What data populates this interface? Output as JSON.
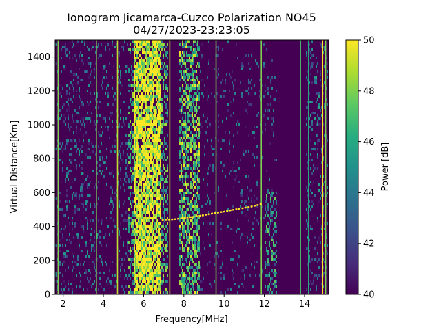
{
  "chart_data": {
    "type": "heatmap",
    "title": "Ionogram Jicamarca-Cuzco Polarization NO45",
    "subtitle": "04/27/2023-23:23:05",
    "xlabel": "Frequency[MHz]",
    "ylabel": "Virtual Distance[Km]",
    "xlim": [
      1.6,
      15.2
    ],
    "ylim": [
      0,
      1500
    ],
    "x_ticks": [
      "2",
      "4",
      "6",
      "8",
      "10",
      "12",
      "14"
    ],
    "y_ticks": [
      "0",
      "200",
      "400",
      "600",
      "800",
      "1000",
      "1200",
      "1400"
    ],
    "colorbar": {
      "label": "Power [dB]",
      "range": [
        40,
        50
      ],
      "ticks": [
        "40",
        "42",
        "44",
        "46",
        "48",
        "50"
      ],
      "colormap": "viridis"
    },
    "background_db": 40,
    "bands": [
      {
        "x_start": 5.5,
        "x_end": 6.9,
        "y_start": 0,
        "y_end": 1500,
        "level_db": 49.5,
        "density": 0.85
      },
      {
        "x_start": 5.2,
        "x_end": 5.5,
        "y_start": 0,
        "y_end": 1500,
        "level_db": 46,
        "density": 0.4
      },
      {
        "x_start": 6.9,
        "x_end": 7.2,
        "y_start": 0,
        "y_end": 1500,
        "level_db": 46,
        "density": 0.4
      },
      {
        "x_start": 7.8,
        "x_end": 8.8,
        "y_start": 0,
        "y_end": 1500,
        "level_db": 47,
        "density": 0.55
      },
      {
        "x_start": 3.4,
        "x_end": 5.2,
        "y_start": 0,
        "y_end": 1500,
        "level_db": 43,
        "density": 0.15
      },
      {
        "x_start": 1.6,
        "x_end": 3.4,
        "y_start": 0,
        "y_end": 1500,
        "level_db": 42.5,
        "density": 0.2
      },
      {
        "x_start": 8.8,
        "x_end": 12.6,
        "y_start": 0,
        "y_end": 1500,
        "level_db": 42,
        "density": 0.1
      },
      {
        "x_start": 12.0,
        "x_end": 12.6,
        "y_start": 0,
        "y_end": 600,
        "level_db": 45,
        "density": 0.35
      },
      {
        "x_start": 14.1,
        "x_end": 15.2,
        "y_start": 0,
        "y_end": 1500,
        "level_db": 43,
        "density": 0.2
      }
    ],
    "interference_lines": [
      {
        "x": 1.75,
        "level_db": 48
      },
      {
        "x": 3.65,
        "level_db": 48
      },
      {
        "x": 4.7,
        "level_db": 49
      },
      {
        "x": 7.3,
        "level_db": 49
      },
      {
        "x": 9.6,
        "level_db": 48
      },
      {
        "x": 11.85,
        "level_db": 48
      },
      {
        "x": 13.8,
        "level_db": 47
      },
      {
        "x": 14.2,
        "level_db": 46
      },
      {
        "x": 14.9,
        "level_db": 50
      },
      {
        "x": 15.05,
        "level_db": 48
      }
    ],
    "trace": {
      "level_db": 50,
      "points": [
        [
          6.9,
          440
        ],
        [
          7.5,
          443
        ],
        [
          8.0,
          450
        ],
        [
          8.5,
          458
        ],
        [
          9.0,
          467
        ],
        [
          9.5,
          478
        ],
        [
          10.0,
          488
        ],
        [
          10.5,
          500
        ],
        [
          11.0,
          510
        ],
        [
          11.5,
          522
        ],
        [
          11.9,
          535
        ]
      ]
    }
  }
}
